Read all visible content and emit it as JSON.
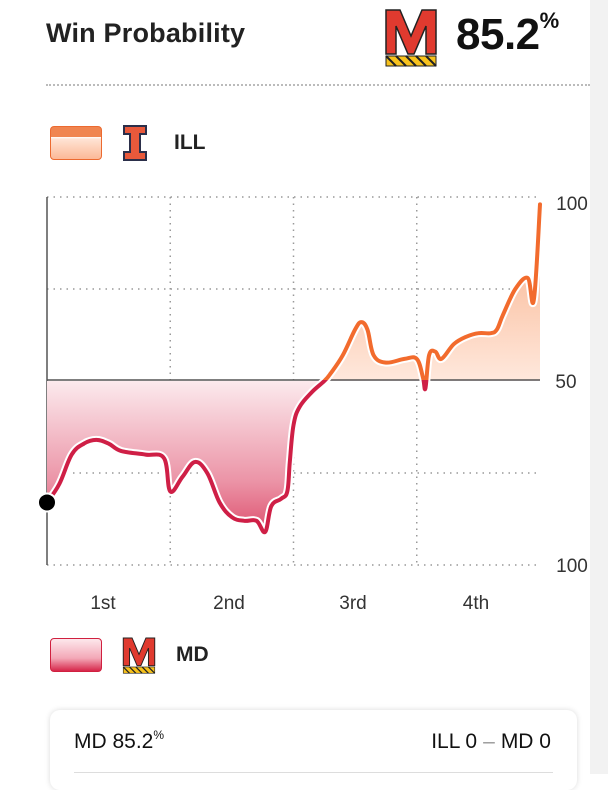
{
  "header": {
    "title": "Win Probability",
    "leader_logo": "maryland-m-logo",
    "leader_prob": "85.2",
    "percent_sign": "%"
  },
  "legend": {
    "ill_label": "ILL",
    "md_label": "MD",
    "ill_logo": "illinois-i-logo",
    "md_logo": "maryland-m-logo"
  },
  "colors": {
    "ill": "#f26b2d",
    "md": "#cf1f46",
    "md_logo_red": "#e03a2f",
    "md_logo_gold": "#f7c21d"
  },
  "chart_data": {
    "type": "area",
    "ylabels": {
      "top": "100",
      "mid": "50",
      "bottom": "100"
    },
    "categories": [
      "1st",
      "2nd",
      "3rd",
      "4th"
    ],
    "ylim": [
      0,
      100
    ],
    "xlim": [
      0,
      4
    ],
    "grid": true,
    "series": [
      {
        "name": "ILL",
        "points": [
          [
            0.0,
            17
          ],
          [
            0.1,
            22
          ],
          [
            0.2,
            30
          ],
          [
            0.3,
            33
          ],
          [
            0.4,
            34
          ],
          [
            0.5,
            33
          ],
          [
            0.6,
            31
          ],
          [
            0.8,
            30
          ],
          [
            0.95,
            29
          ],
          [
            1.0,
            20
          ],
          [
            1.1,
            24
          ],
          [
            1.2,
            28
          ],
          [
            1.3,
            25
          ],
          [
            1.4,
            17
          ],
          [
            1.5,
            13
          ],
          [
            1.6,
            12
          ],
          [
            1.7,
            12
          ],
          [
            1.77,
            9
          ],
          [
            1.82,
            16
          ],
          [
            1.9,
            18
          ],
          [
            1.95,
            20
          ],
          [
            1.97,
            28
          ],
          [
            2.0,
            38
          ],
          [
            2.05,
            43
          ],
          [
            2.15,
            47
          ],
          [
            2.25,
            50
          ],
          [
            2.3,
            52
          ],
          [
            2.4,
            57
          ],
          [
            2.5,
            64
          ],
          [
            2.55,
            66
          ],
          [
            2.6,
            64
          ],
          [
            2.65,
            57
          ],
          [
            2.75,
            55
          ],
          [
            2.9,
            56
          ],
          [
            3.0,
            56
          ],
          [
            3.05,
            51
          ],
          [
            3.07,
            48
          ],
          [
            3.1,
            57
          ],
          [
            3.15,
            58
          ],
          [
            3.2,
            56
          ],
          [
            3.3,
            60
          ],
          [
            3.4,
            62
          ],
          [
            3.5,
            63
          ],
          [
            3.6,
            63
          ],
          [
            3.65,
            64
          ],
          [
            3.7,
            68
          ],
          [
            3.8,
            75
          ],
          [
            3.9,
            78
          ],
          [
            3.95,
            72
          ],
          [
            4.0,
            98
          ]
        ]
      }
    ]
  },
  "summary": {
    "md_text": "MD 85.2",
    "md_pct": "%",
    "ill_score": "ILL 0",
    "dash": "–",
    "md_score": "MD 0"
  }
}
